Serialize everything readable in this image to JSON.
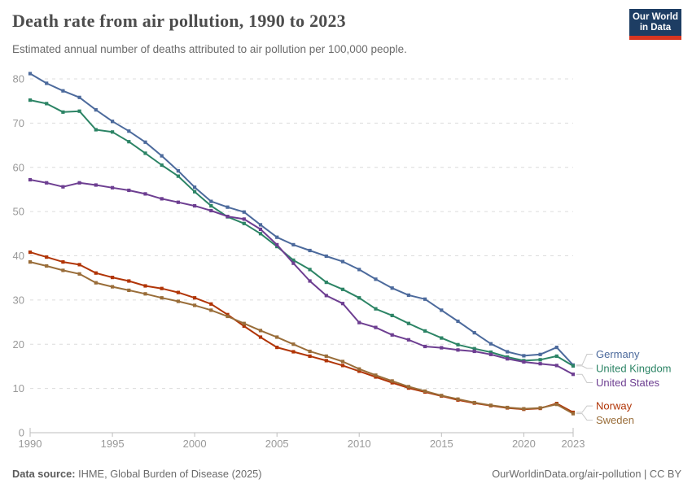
{
  "chart_data": {
    "type": "line",
    "title": "Death rate from air pollution, 1990 to 2023",
    "subtitle": "Estimated annual number of deaths attributed to air pollution per 100,000 people.",
    "x": [
      1990,
      1991,
      1992,
      1993,
      1994,
      1995,
      1996,
      1997,
      1998,
      1999,
      2000,
      2001,
      2002,
      2003,
      2004,
      2005,
      2006,
      2007,
      2008,
      2009,
      2010,
      2011,
      2012,
      2013,
      2014,
      2015,
      2016,
      2017,
      2018,
      2019,
      2020,
      2021,
      2022,
      2023
    ],
    "series": [
      {
        "name": "Germany",
        "color": "#4C6A9C",
        "values": [
          81.2,
          79.0,
          77.3,
          75.8,
          73.0,
          70.4,
          68.2,
          65.7,
          62.6,
          59.2,
          55.5,
          52.3,
          51.0,
          49.9,
          47.0,
          44.2,
          42.5,
          41.2,
          39.9,
          38.7,
          36.9,
          34.7,
          32.7,
          31.1,
          30.2,
          27.7,
          25.2,
          22.6,
          20.1,
          18.3,
          17.4,
          17.7,
          19.3,
          15.3
        ]
      },
      {
        "name": "United Kingdom",
        "color": "#2C8465",
        "values": [
          75.2,
          74.4,
          72.5,
          72.7,
          68.5,
          68.0,
          65.8,
          63.2,
          60.5,
          58.0,
          54.5,
          51.3,
          48.8,
          47.3,
          45.0,
          42.1,
          39.0,
          36.9,
          34.0,
          32.4,
          30.5,
          28.0,
          26.5,
          24.7,
          23.0,
          21.4,
          19.9,
          19.0,
          18.2,
          17.1,
          16.3,
          16.5,
          17.3,
          15.1
        ]
      },
      {
        "name": "United States",
        "color": "#6D3E91",
        "values": [
          57.2,
          56.5,
          55.6,
          56.5,
          56.0,
          55.4,
          54.8,
          54.0,
          52.9,
          52.1,
          51.3,
          50.2,
          48.9,
          48.3,
          46.0,
          42.5,
          38.3,
          34.3,
          31.0,
          29.2,
          24.9,
          23.8,
          22.1,
          21.0,
          19.5,
          19.2,
          18.7,
          18.4,
          17.7,
          16.7,
          16.0,
          15.6,
          15.2,
          13.2
        ]
      },
      {
        "name": "Norway",
        "color": "#B13507",
        "values": [
          40.8,
          39.7,
          38.6,
          38.0,
          36.1,
          35.1,
          34.3,
          33.2,
          32.6,
          31.7,
          30.5,
          29.1,
          26.7,
          24.1,
          21.6,
          19.3,
          18.3,
          17.3,
          16.3,
          15.2,
          13.9,
          12.6,
          11.3,
          10.1,
          9.2,
          8.3,
          7.4,
          6.7,
          6.1,
          5.6,
          5.3,
          5.5,
          6.6,
          4.6
        ]
      },
      {
        "name": "Sweden",
        "color": "#996D39",
        "values": [
          38.6,
          37.7,
          36.7,
          35.9,
          33.9,
          33.0,
          32.2,
          31.4,
          30.5,
          29.7,
          28.8,
          27.7,
          26.3,
          24.7,
          23.1,
          21.6,
          20.0,
          18.4,
          17.3,
          16.1,
          14.4,
          13.0,
          11.7,
          10.4,
          9.4,
          8.4,
          7.6,
          6.8,
          6.2,
          5.7,
          5.4,
          5.6,
          6.4,
          4.3
        ]
      }
    ],
    "ylim": [
      0,
      80
    ],
    "yticks": [
      0,
      10,
      20,
      30,
      40,
      50,
      60,
      70,
      80
    ],
    "xticks": [
      1990,
      1995,
      2000,
      2005,
      2010,
      2015,
      2020,
      2023
    ],
    "grid": "horizontal-dashed",
    "legend_position": "right-end-labels"
  },
  "logo": {
    "line1": "Our World",
    "line2": "in Data"
  },
  "footer": {
    "source_label": "Data source:",
    "source_text": " IHME, Global Burden of Disease (2025)",
    "link": "OurWorldinData.org/air-pollution | CC BY"
  }
}
